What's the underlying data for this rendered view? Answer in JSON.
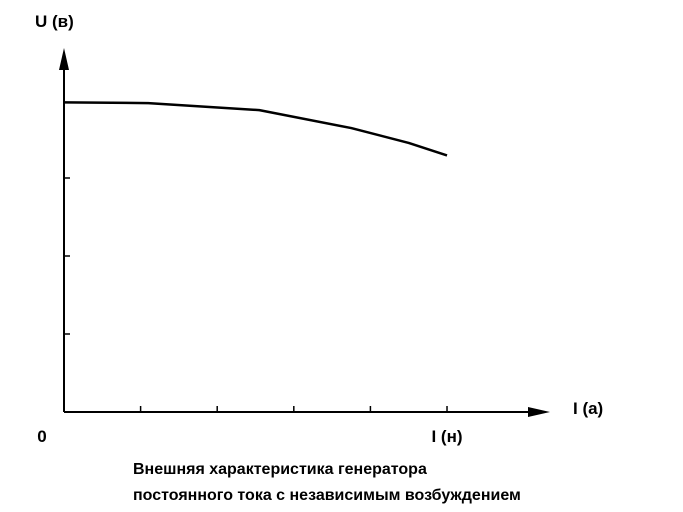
{
  "chart_data": {
    "type": "line",
    "y_label": "U (в)",
    "x_label": "I (а)",
    "caption": [
      "Внешняя характеристика генератора",
      "постоянного тока с независимым возбуждением"
    ],
    "x": [
      0,
      0.22,
      0.51,
      0.75,
      0.9,
      1.0
    ],
    "series": [
      {
        "color": "#000000",
        "values": [
          3.97,
          3.96,
          3.87,
          3.64,
          3.45,
          3.29
        ]
      }
    ],
    "xlim": [
      0,
      1.26
    ],
    "ylim": [
      0,
      4.7
    ],
    "xticks": [
      0,
      {
        "value": 0.2,
        "label": null
      },
      {
        "value": 0.4,
        "label": null
      },
      {
        "value": 0.6,
        "label": null
      },
      {
        "value": 0.8,
        "label": null
      },
      {
        "value": 1.0,
        "label": "I (н)"
      }
    ],
    "yticks": [
      {
        "value": 1,
        "label": null
      },
      {
        "value": 2,
        "label": null
      },
      {
        "value": 3,
        "label": null
      }
    ],
    "grid": false
  }
}
